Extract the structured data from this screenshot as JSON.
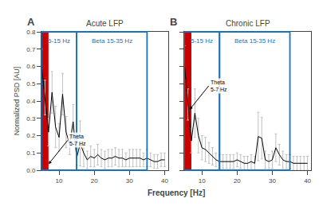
{
  "chart_data": {
    "type": "line",
    "xlabel": "Frequency [Hz]",
    "ylabel": "Normalized PSD [AU]",
    "xlim": [
      5,
      41
    ],
    "xticks": [
      10,
      20,
      30,
      40
    ],
    "ylim": [
      0,
      0.8
    ],
    "yticks": [
      {
        "value": 0.0,
        "label": "0.0"
      },
      0.1,
      0.2,
      0.3,
      0.4,
      0.5,
      0.6,
      0.7,
      0.8
    ],
    "grid": false,
    "color": "black",
    "highlight": {
      "start": 5,
      "end": 7,
      "color": "#cc0000"
    },
    "band_color": "#1a72b8",
    "bands": [
      {
        "start": 5,
        "end": 15,
        "label": "5-15 Hz"
      },
      {
        "start": 15,
        "end": 35,
        "label": "Beta 15-35 Hz"
      }
    ],
    "panels": [
      {
        "label": "A",
        "title": "Acute LFP",
        "x": [
          5,
          6,
          7,
          8,
          9,
          10,
          11,
          12,
          13,
          14,
          15,
          16,
          17,
          18,
          19,
          20,
          21,
          22,
          23,
          24,
          25,
          26,
          27,
          28,
          29,
          30,
          31,
          32,
          33,
          34,
          35,
          36,
          37,
          38,
          39,
          40
        ],
        "values": [
          0.61,
          0.42,
          0.22,
          0.45,
          0.25,
          0.19,
          0.44,
          0.22,
          0.15,
          0.28,
          0.07,
          0.155,
          0.1,
          0.06,
          0.08,
          0.07,
          0.09,
          0.07,
          0.06,
          0.07,
          0.07,
          0.08,
          0.07,
          0.07,
          0.06,
          0.07,
          0.07,
          0.07,
          0.07,
          0.06,
          0.07,
          0.06,
          0.05,
          0.05,
          0.06,
          0.06
        ],
        "errors": [
          0.09,
          0.1,
          0.08,
          0.12,
          0.12,
          0.08,
          0.12,
          0.09,
          0.06,
          0.1,
          0.04,
          0.13,
          0.08,
          0.05,
          0.06,
          0.05,
          0.06,
          0.05,
          0.05,
          0.05,
          0.05,
          0.05,
          0.05,
          0.05,
          0.04,
          0.05,
          0.05,
          0.05,
          0.05,
          0.04,
          0.05,
          0.04,
          0.04,
          0.04,
          0.04,
          0.04
        ],
        "annotations": [
          {
            "text": "Theta\n5-7 Hz",
            "x": 7,
            "y": 0.035
          }
        ]
      },
      {
        "label": "B",
        "title": "Chronic LFP",
        "tick_labels": "x",
        "x": [
          5,
          6,
          7,
          8,
          9,
          10,
          11,
          12,
          13,
          14,
          15,
          16,
          17,
          18,
          19,
          20,
          21,
          22,
          23,
          24,
          25,
          26,
          27,
          28,
          29,
          30,
          31,
          32,
          33,
          34,
          35,
          36,
          37,
          38,
          39,
          40
        ],
        "values": [
          0.62,
          0.38,
          0.17,
          0.33,
          0.2,
          0.13,
          0.12,
          0.1,
          0.08,
          0.06,
          0.05,
          0.05,
          0.05,
          0.05,
          0.05,
          0.06,
          0.05,
          0.04,
          0.04,
          0.05,
          0.04,
          0.195,
          0.185,
          0.06,
          0.05,
          0.06,
          0.13,
          0.09,
          0.06,
          0.05,
          0.05,
          0.04,
          0.04,
          0.04,
          0.04,
          0.04
        ],
        "errors": [
          0.1,
          0.09,
          0.07,
          0.14,
          0.1,
          0.07,
          0.07,
          0.06,
          0.05,
          0.04,
          0.04,
          0.04,
          0.04,
          0.04,
          0.04,
          0.04,
          0.04,
          0.04,
          0.04,
          0.04,
          0.04,
          0.14,
          0.12,
          0.05,
          0.04,
          0.05,
          0.08,
          0.06,
          0.05,
          0.04,
          0.04,
          0.04,
          0.04,
          0.04,
          0.04,
          0.04
        ],
        "annotations": [
          {
            "text": "Theta\n5-7 Hz",
            "x": 6.5,
            "y": 0.35
          }
        ]
      }
    ]
  }
}
